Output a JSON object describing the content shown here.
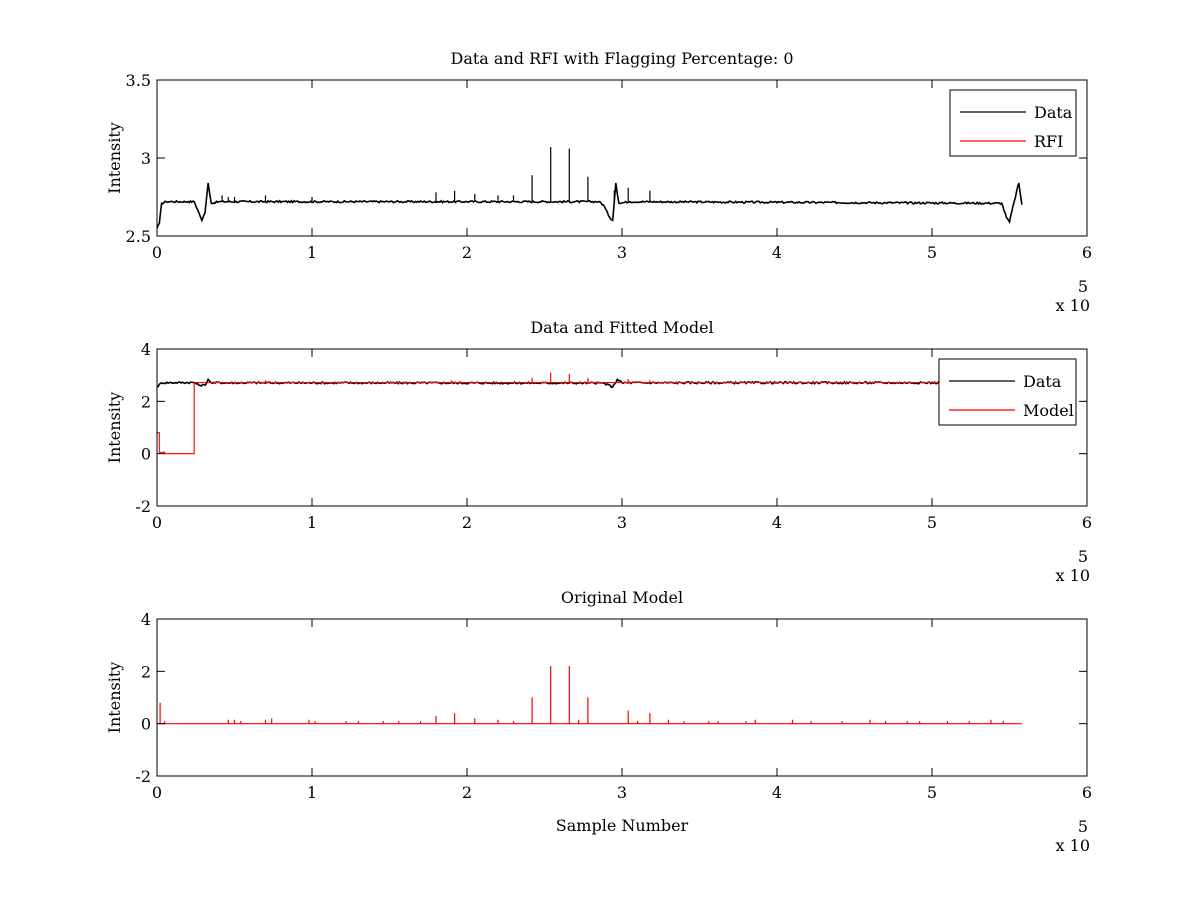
{
  "chart_data": [
    {
      "type": "line",
      "title": "Data and RFI with Flagging Percentage: 0",
      "xlabel": "",
      "ylabel": "Intensity",
      "xlim": [
        0,
        6
      ],
      "ylim": [
        2.5,
        3.5
      ],
      "xticks": [
        "0",
        "1",
        "2",
        "3",
        "4",
        "5",
        "6"
      ],
      "yticks": [
        "2.5",
        "3",
        "3.5"
      ],
      "x_multiplier": {
        "base": "x 10",
        "exponent": "5"
      },
      "legend": {
        "position": "top-right",
        "entries": [
          {
            "name": "Data",
            "color": "#000000"
          },
          {
            "name": "RFI",
            "color": "#ff0000"
          }
        ]
      },
      "series": [
        {
          "name": "Data",
          "color": "#000000",
          "baseline": 2.72,
          "points": [
            [
              0.0,
              2.55
            ],
            [
              0.015,
              2.58
            ],
            [
              0.03,
              2.71
            ],
            [
              0.06,
              2.72
            ],
            [
              0.1,
              2.72
            ],
            [
              0.2,
              2.72
            ],
            [
              0.24,
              2.72
            ],
            [
              0.27,
              2.65
            ],
            [
              0.29,
              2.6
            ],
            [
              0.31,
              2.65
            ],
            [
              0.33,
              2.84
            ],
            [
              0.35,
              2.71
            ],
            [
              0.4,
              2.72
            ],
            [
              2.85,
              2.72
            ],
            [
              2.88,
              2.7
            ],
            [
              2.92,
              2.62
            ],
            [
              2.94,
              2.6
            ],
            [
              2.96,
              2.84
            ],
            [
              2.98,
              2.71
            ],
            [
              3.05,
              2.72
            ],
            [
              5.45,
              2.71
            ],
            [
              5.48,
              2.62
            ],
            [
              5.5,
              2.59
            ],
            [
              5.53,
              2.72
            ],
            [
              5.56,
              2.84
            ],
            [
              5.58,
              2.7
            ]
          ],
          "spikes": [
            [
              0.42,
              2.76
            ],
            [
              0.46,
              2.75
            ],
            [
              0.5,
              2.75
            ],
            [
              0.7,
              2.76
            ],
            [
              1.0,
              2.75
            ],
            [
              1.8,
              2.78
            ],
            [
              1.92,
              2.79
            ],
            [
              2.05,
              2.77
            ],
            [
              2.2,
              2.76
            ],
            [
              2.3,
              2.76
            ],
            [
              2.42,
              2.89
            ],
            [
              2.54,
              3.07
            ],
            [
              2.66,
              3.06
            ],
            [
              2.78,
              2.88
            ],
            [
              2.95,
              2.79
            ],
            [
              3.04,
              2.81
            ],
            [
              3.18,
              2.79
            ]
          ]
        }
      ]
    },
    {
      "type": "line",
      "title": "Data and Fitted Model",
      "xlabel": "",
      "ylabel": "Intensity",
      "xlim": [
        0,
        6
      ],
      "ylim": [
        -2,
        4
      ],
      "xticks": [
        "0",
        "1",
        "2",
        "3",
        "4",
        "5",
        "6"
      ],
      "yticks": [
        "-2",
        "0",
        "2",
        "4"
      ],
      "x_multiplier": {
        "base": "x 10",
        "exponent": "5"
      },
      "legend": {
        "position": "top-right",
        "entries": [
          {
            "name": "Data",
            "color": "#000000"
          },
          {
            "name": "Model",
            "color": "#ff0000"
          }
        ]
      },
      "series": [
        {
          "name": "Data",
          "color": "#000000",
          "points": [
            [
              0.0,
              2.55
            ],
            [
              0.03,
              2.71
            ],
            [
              0.24,
              2.72
            ],
            [
              0.27,
              2.62
            ],
            [
              0.31,
              2.62
            ],
            [
              0.33,
              2.84
            ],
            [
              0.35,
              2.71
            ],
            [
              2.88,
              2.7
            ],
            [
              2.94,
              2.55
            ],
            [
              2.97,
              2.84
            ],
            [
              3.0,
              2.71
            ],
            [
              5.45,
              2.71
            ],
            [
              5.5,
              2.59
            ],
            [
              5.58,
              2.7
            ]
          ]
        },
        {
          "name": "Model",
          "color": "#ff0000",
          "points": [
            [
              0.0,
              0.8
            ],
            [
              0.015,
              0.8
            ],
            [
              0.015,
              0.05
            ],
            [
              0.05,
              0.05
            ],
            [
              0.05,
              0.0
            ],
            [
              0.24,
              0.0
            ],
            [
              0.24,
              2.72
            ],
            [
              5.58,
              2.72
            ]
          ],
          "spikes": [
            [
              2.42,
              2.9
            ],
            [
              2.54,
              3.1
            ],
            [
              2.66,
              3.05
            ],
            [
              2.78,
              2.9
            ],
            [
              3.04,
              2.85
            ],
            [
              0.7,
              2.8
            ],
            [
              1.9,
              2.8
            ],
            [
              3.18,
              2.8
            ]
          ]
        }
      ]
    },
    {
      "type": "line",
      "title": "Original Model",
      "xlabel": "Sample Number",
      "ylabel": "Intensity",
      "xlim": [
        0,
        6
      ],
      "ylim": [
        -2,
        4
      ],
      "xticks": [
        "0",
        "1",
        "2",
        "3",
        "4",
        "5",
        "6"
      ],
      "yticks": [
        "-2",
        "0",
        "2",
        "4"
      ],
      "x_multiplier": {
        "base": "x 10",
        "exponent": "5"
      },
      "series": [
        {
          "name": "RFI",
          "color": "#ff0000",
          "baseline": 0,
          "xmax": 5.58,
          "spikes": [
            [
              0.02,
              0.8
            ],
            [
              0.05,
              0.1
            ],
            [
              0.46,
              0.15
            ],
            [
              0.5,
              0.15
            ],
            [
              0.54,
              0.1
            ],
            [
              0.7,
              0.15
            ],
            [
              0.74,
              0.2
            ],
            [
              0.98,
              0.15
            ],
            [
              1.02,
              0.1
            ],
            [
              1.22,
              0.1
            ],
            [
              1.3,
              0.1
            ],
            [
              1.46,
              0.1
            ],
            [
              1.56,
              0.1
            ],
            [
              1.7,
              0.1
            ],
            [
              1.8,
              0.3
            ],
            [
              1.92,
              0.4
            ],
            [
              2.05,
              0.2
            ],
            [
              2.2,
              0.15
            ],
            [
              2.3,
              0.1
            ],
            [
              2.42,
              1.0
            ],
            [
              2.54,
              2.2
            ],
            [
              2.66,
              2.2
            ],
            [
              2.72,
              0.15
            ],
            [
              2.78,
              1.0
            ],
            [
              3.04,
              0.5
            ],
            [
              3.1,
              0.1
            ],
            [
              3.18,
              0.4
            ],
            [
              3.3,
              0.15
            ],
            [
              3.4,
              0.1
            ],
            [
              3.56,
              0.1
            ],
            [
              3.62,
              0.1
            ],
            [
              3.8,
              0.1
            ],
            [
              3.86,
              0.15
            ],
            [
              4.1,
              0.15
            ],
            [
              4.22,
              0.1
            ],
            [
              4.42,
              0.1
            ],
            [
              4.6,
              0.15
            ],
            [
              4.7,
              0.1
            ],
            [
              4.84,
              0.1
            ],
            [
              4.92,
              0.1
            ],
            [
              5.1,
              0.1
            ],
            [
              5.24,
              0.1
            ],
            [
              5.38,
              0.15
            ],
            [
              5.46,
              0.1
            ]
          ]
        }
      ]
    }
  ]
}
